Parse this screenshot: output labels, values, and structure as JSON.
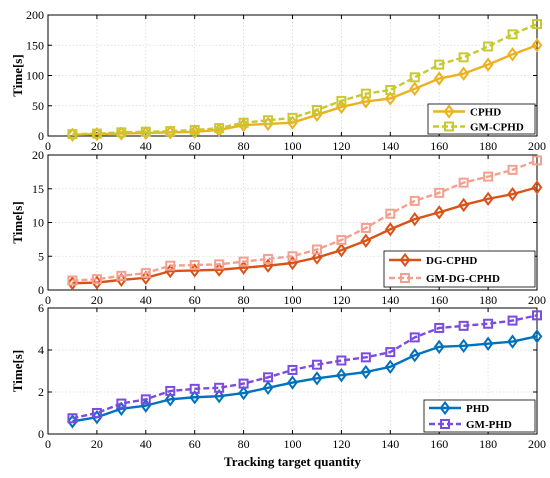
{
  "chart_data": [
    {
      "type": "line",
      "x": [
        10,
        20,
        30,
        40,
        50,
        60,
        70,
        80,
        90,
        100,
        110,
        120,
        130,
        140,
        150,
        160,
        170,
        180,
        190,
        200
      ],
      "series": [
        {
          "name": "CPHD",
          "color": "#EDB120",
          "marker": "diamond",
          "dash": "solid",
          "values": [
            2,
            3,
            4,
            5,
            6,
            7,
            10,
            18,
            20,
            22,
            35,
            48,
            57,
            62,
            78,
            95,
            103,
            118,
            135,
            150
          ]
        },
        {
          "name": "GM-CPHD",
          "color": "#C8C830",
          "marker": "square",
          "dash": "dashed",
          "values": [
            3,
            4,
            6,
            7,
            8,
            10,
            13,
            22,
            26,
            30,
            43,
            58,
            70,
            76,
            97,
            118,
            130,
            148,
            168,
            185
          ]
        }
      ],
      "title": "",
      "xlabel": "",
      "ylabel": "Time[s]",
      "xlim": [
        0,
        200
      ],
      "ylim": [
        0,
        200
      ],
      "xticks": [
        0,
        20,
        40,
        60,
        80,
        100,
        120,
        140,
        160,
        180,
        200
      ],
      "yticks": [
        0,
        50,
        100,
        150,
        200
      ],
      "grid": true,
      "legend": "bottom-right"
    },
    {
      "type": "line",
      "x": [
        10,
        20,
        30,
        40,
        50,
        60,
        70,
        80,
        90,
        100,
        110,
        120,
        130,
        140,
        150,
        160,
        170,
        180,
        190,
        200
      ],
      "series": [
        {
          "name": "DG-CPHD",
          "color": "#D95319",
          "marker": "diamond",
          "dash": "solid",
          "values": [
            1.0,
            1.1,
            1.5,
            1.8,
            2.8,
            2.9,
            3.0,
            3.3,
            3.6,
            4.0,
            4.8,
            5.9,
            7.3,
            9.0,
            10.5,
            11.5,
            12.6,
            13.5,
            14.2,
            15.2
          ]
        },
        {
          "name": "GM-DG-CPHD",
          "color": "#F4A090",
          "marker": "square",
          "dash": "dashed",
          "values": [
            1.4,
            1.6,
            2.1,
            2.5,
            3.6,
            3.7,
            3.8,
            4.2,
            4.6,
            5.0,
            6.0,
            7.4,
            9.2,
            11.3,
            13.2,
            14.4,
            15.9,
            16.8,
            17.8,
            19.2
          ]
        }
      ],
      "title": "",
      "xlabel": "",
      "ylabel": "Time[s]",
      "xlim": [
        0,
        200
      ],
      "ylim": [
        0,
        20
      ],
      "xticks": [
        0,
        20,
        40,
        60,
        80,
        100,
        120,
        140,
        160,
        180,
        200
      ],
      "yticks": [
        0,
        5,
        10,
        15,
        20
      ],
      "grid": true,
      "legend": "bottom-right"
    },
    {
      "type": "line",
      "x": [
        10,
        20,
        30,
        40,
        50,
        60,
        70,
        80,
        90,
        100,
        110,
        120,
        130,
        140,
        150,
        160,
        170,
        180,
        190,
        200
      ],
      "series": [
        {
          "name": "PHD",
          "color": "#0072BD",
          "marker": "diamond",
          "dash": "solid",
          "values": [
            0.6,
            0.8,
            1.2,
            1.35,
            1.65,
            1.75,
            1.8,
            1.95,
            2.2,
            2.45,
            2.65,
            2.8,
            2.95,
            3.2,
            3.75,
            4.15,
            4.2,
            4.3,
            4.4,
            4.65
          ]
        },
        {
          "name": "GM-PHD",
          "color": "#7B4CE0",
          "marker": "square",
          "dash": "dashed",
          "values": [
            0.75,
            1.0,
            1.45,
            1.65,
            2.05,
            2.15,
            2.2,
            2.4,
            2.7,
            3.05,
            3.3,
            3.5,
            3.65,
            3.9,
            4.6,
            5.05,
            5.15,
            5.25,
            5.4,
            5.65
          ]
        }
      ],
      "title": "",
      "xlabel": "Tracking target quantity",
      "ylabel": "Time[s]",
      "xlim": [
        0,
        200
      ],
      "ylim": [
        0,
        6
      ],
      "xticks": [
        0,
        20,
        40,
        60,
        80,
        100,
        120,
        140,
        160,
        180,
        200
      ],
      "yticks": [
        0,
        2,
        4,
        6
      ],
      "grid": true,
      "legend": "bottom-right"
    }
  ]
}
